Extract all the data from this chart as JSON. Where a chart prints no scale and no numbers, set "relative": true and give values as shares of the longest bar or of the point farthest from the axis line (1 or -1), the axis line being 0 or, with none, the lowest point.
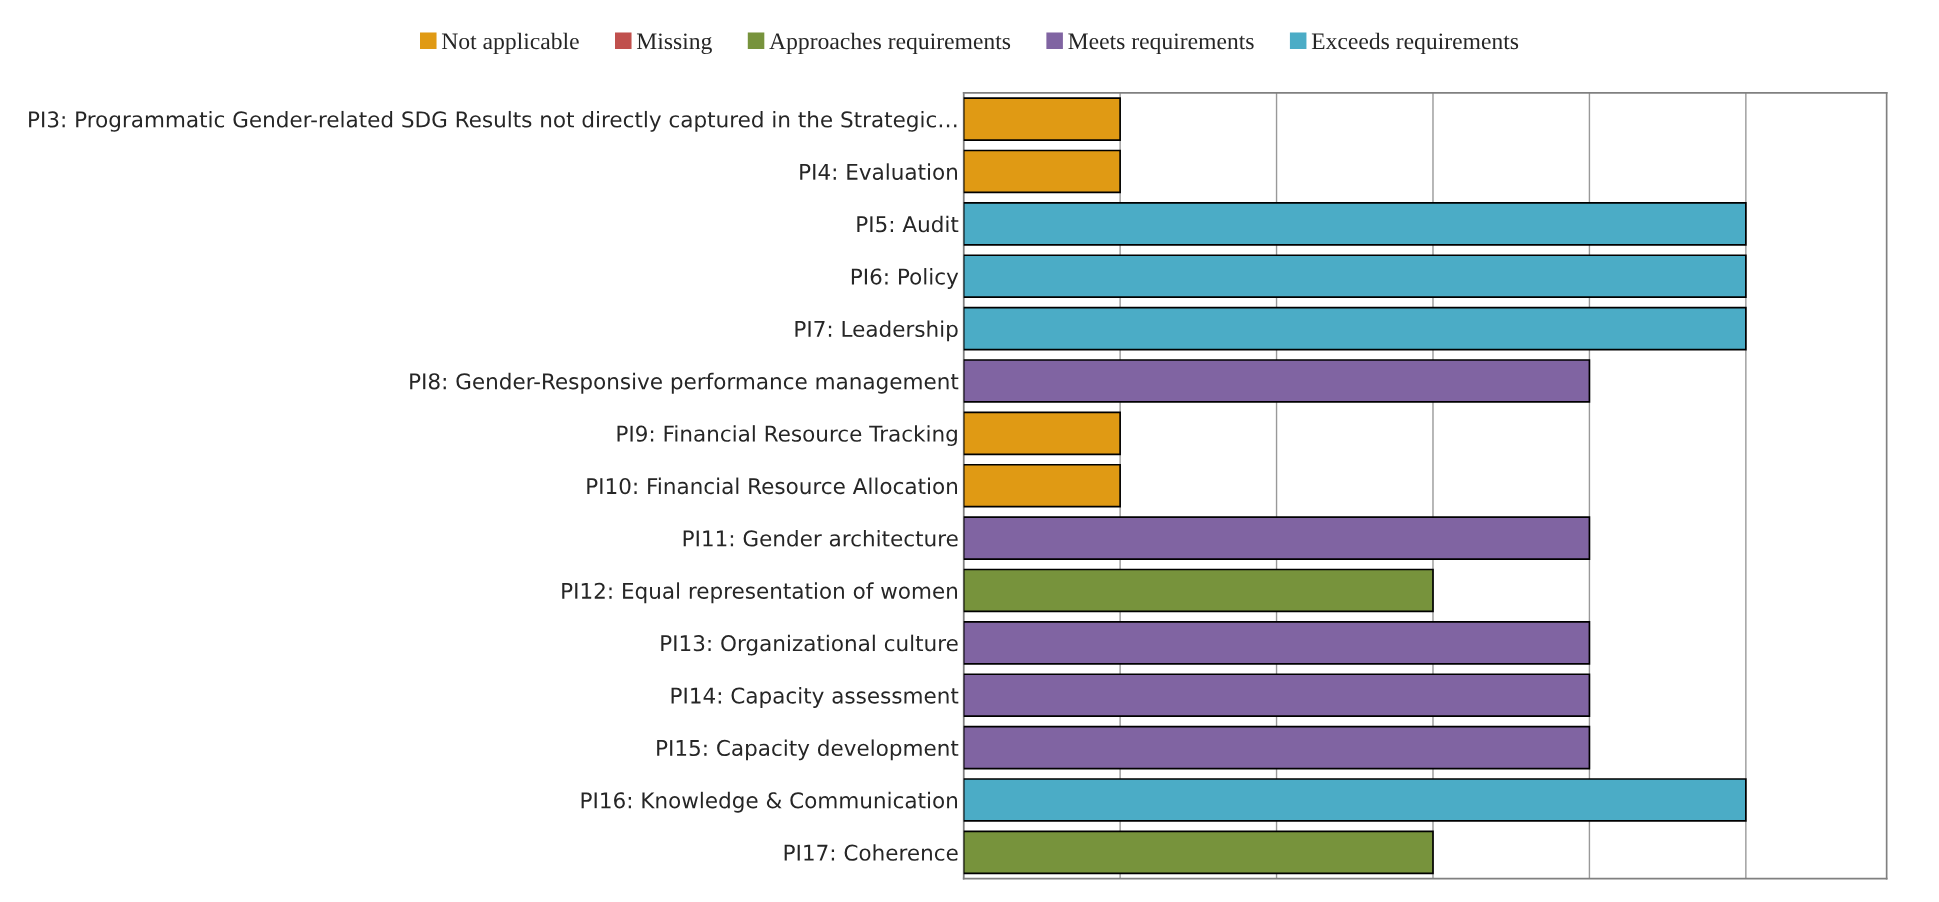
{
  "chart_data": {
    "type": "bar",
    "orientation": "horizontal",
    "relative": true,
    "grid": "x",
    "legend": "top",
    "categories": [
      "PI3: Programmatic Gender-related SDG Results not directly captured in the Strategic…",
      "PI4: Evaluation",
      "PI5: Audit",
      "PI6: Policy",
      "PI7: Leadership",
      "PI8: Gender-Responsive performance management",
      "PI9: Financial Resource Tracking",
      "PI10: Financial Resource Allocation",
      "PI11: Gender architecture",
      "PI12: Equal representation of women",
      "PI13: Organizational culture",
      "PI14: Capacity assessment",
      "PI15: Capacity development",
      "PI16: Knowledge & Communication",
      "PI17: Coherence"
    ],
    "series": [
      {
        "name": "Not applicable",
        "color": "#e09a14",
        "values": [
          0.2,
          0.2,
          null,
          null,
          null,
          null,
          0.2,
          0.2,
          null,
          null,
          null,
          null,
          null,
          null,
          null
        ]
      },
      {
        "name": "Missing",
        "color": "#c0504d",
        "values": [
          null,
          null,
          null,
          null,
          null,
          null,
          null,
          null,
          null,
          null,
          null,
          null,
          null,
          null,
          null
        ]
      },
      {
        "name": "Approaches requirements",
        "color": "#77933c",
        "values": [
          null,
          null,
          null,
          null,
          null,
          null,
          null,
          null,
          null,
          0.6,
          null,
          null,
          null,
          null,
          0.6
        ]
      },
      {
        "name": "Meets requirements",
        "color": "#8064a2",
        "values": [
          null,
          null,
          null,
          null,
          null,
          0.8,
          null,
          null,
          0.8,
          null,
          0.8,
          0.8,
          0.8,
          null,
          null
        ]
      },
      {
        "name": "Exceeds requirements",
        "color": "#4bacc6",
        "values": [
          null,
          null,
          1,
          1,
          1,
          null,
          null,
          null,
          null,
          null,
          null,
          null,
          null,
          1,
          null
        ]
      }
    ]
  }
}
